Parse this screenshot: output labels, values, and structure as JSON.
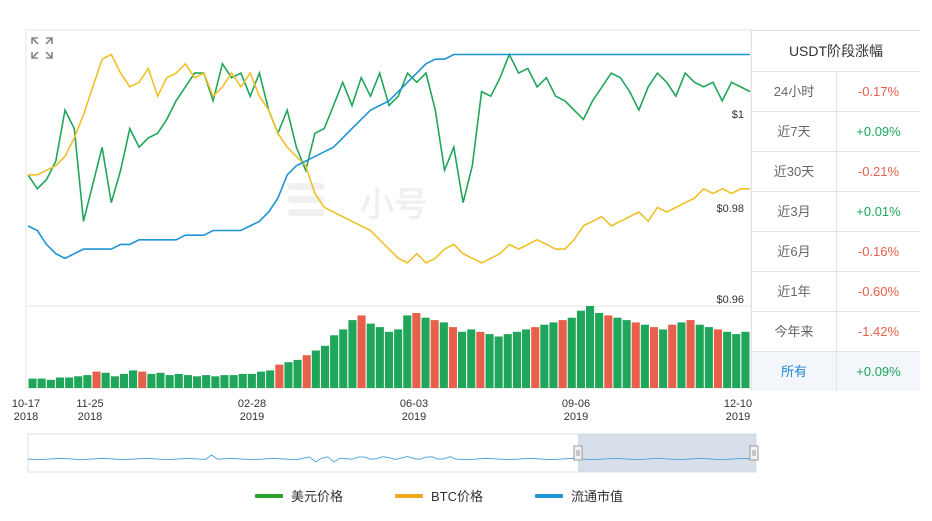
{
  "chart_data": {
    "type": "line",
    "title": "",
    "x_tick_labels": [
      {
        "date": "10-17",
        "year": "2018"
      },
      {
        "date": "11-25",
        "year": "2018"
      },
      {
        "date": "02-28",
        "year": "2019"
      },
      {
        "date": "06-03",
        "year": "2019"
      },
      {
        "date": "09-06",
        "year": "2019"
      },
      {
        "date": "12-10",
        "year": "2019"
      }
    ],
    "y_tick_labels": [
      "$1",
      "$0.98",
      "$0.96"
    ],
    "ylim": [
      0.96,
      1.0
    ],
    "x_range": [
      "2018-10-17",
      "2019-12-10"
    ],
    "series": [
      {
        "name": "美元价格",
        "color": "#1fa65a",
        "values": [
          0.982,
          0.979,
          0.981,
          0.985,
          0.996,
          0.992,
          0.972,
          0.98,
          0.988,
          0.976,
          0.983,
          0.992,
          0.988,
          0.99,
          0.991,
          0.994,
          0.998,
          1.001,
          1.004,
          1.004,
          0.998,
          1.006,
          1.003,
          1.004,
          0.999,
          1.004,
          0.996,
          0.991,
          0.996,
          0.988,
          0.983,
          0.991,
          0.992,
          0.997,
          1.002,
          0.997,
          1.003,
          0.999,
          1.004,
          0.997,
          0.999,
          1.004,
          1.002,
          1.004,
          0.996,
          0.983,
          0.988,
          0.976,
          0.984,
          1.0,
          0.999,
          1.003,
          1.008,
          1.004,
          1.005,
          1.001,
          1.003,
          0.999,
          0.998,
          0.996,
          0.994,
          0.998,
          1.001,
          1.004,
          1.003,
          1.0,
          0.996,
          1.001,
          1.004,
          1.002,
          0.999,
          1.004,
          1.002,
          1.001,
          1.002,
          0.998,
          1.002,
          1.001,
          1.0
        ],
        "note": ""
      },
      {
        "name": "BTC价格",
        "color": "#f0c02a",
        "values": [
          0.982,
          0.982,
          0.983,
          0.984,
          0.986,
          0.99,
          0.995,
          1.001,
          1.007,
          1.008,
          1.004,
          1.001,
          1.002,
          1.005,
          0.999,
          1.003,
          1.004,
          1.006,
          1.003,
          1.004,
          0.999,
          1.001,
          1.004,
          1.001,
          1.004,
          0.999,
          0.996,
          0.991,
          0.988,
          0.986,
          0.984,
          0.978,
          0.975,
          0.974,
          0.973,
          0.972,
          0.971,
          0.97,
          0.968,
          0.966,
          0.964,
          0.963,
          0.965,
          0.963,
          0.964,
          0.966,
          0.967,
          0.965,
          0.964,
          0.963,
          0.964,
          0.965,
          0.967,
          0.966,
          0.967,
          0.968,
          0.967,
          0.966,
          0.966,
          0.968,
          0.971,
          0.972,
          0.973,
          0.971,
          0.972,
          0.973,
          0.974,
          0.972,
          0.975,
          0.974,
          0.975,
          0.976,
          0.977,
          0.979,
          0.978,
          0.979,
          0.978,
          0.979,
          0.979
        ],
        "note": ""
      },
      {
        "name": "流通市值",
        "color": "#1e94d6",
        "values": [
          0.971,
          0.97,
          0.967,
          0.965,
          0.964,
          0.965,
          0.966,
          0.966,
          0.966,
          0.966,
          0.967,
          0.967,
          0.968,
          0.968,
          0.968,
          0.968,
          0.968,
          0.969,
          0.969,
          0.969,
          0.97,
          0.97,
          0.97,
          0.97,
          0.971,
          0.972,
          0.974,
          0.977,
          0.982,
          0.984,
          0.985,
          0.986,
          0.987,
          0.988,
          0.99,
          0.992,
          0.994,
          0.996,
          0.997,
          0.998,
          1.0,
          1.002,
          1.004,
          1.006,
          1.007,
          1.007,
          1.008,
          1.008,
          1.008,
          1.008,
          1.008,
          1.008,
          1.008,
          1.008,
          1.008,
          1.008,
          1.008,
          1.008,
          1.008,
          1.008,
          1.008,
          1.008,
          1.008,
          1.008,
          1.008,
          1.008,
          1.008,
          1.008,
          1.008,
          1.008,
          1.008,
          1.008,
          1.008,
          1.008,
          1.008,
          1.008,
          1.008,
          1.008,
          1.008
        ],
        "note": ""
      }
    ],
    "volume": {
      "values": [
        8,
        8,
        7,
        9,
        9,
        10,
        11,
        14,
        13,
        10,
        12,
        15,
        14,
        12,
        13,
        11,
        12,
        11,
        10,
        11,
        10,
        11,
        11,
        12,
        12,
        14,
        15,
        20,
        22,
        24,
        28,
        32,
        36,
        45,
        50,
        58,
        62,
        55,
        52,
        48,
        50,
        62,
        64,
        60,
        58,
        56,
        52,
        48,
        50,
        48,
        46,
        44,
        46,
        48,
        50,
        52,
        54,
        56,
        58,
        60,
        66,
        70,
        64,
        62,
        60,
        58,
        56,
        54,
        52,
        50,
        54,
        56,
        58,
        54,
        52,
        50,
        48,
        46,
        48
      ],
      "down_indices": [
        7,
        12,
        27,
        30,
        36,
        42,
        44,
        46,
        49,
        55,
        58,
        63,
        66,
        68,
        70,
        72,
        75
      ],
      "colors": {
        "up": "#1fa65a",
        "down": "#e8604c"
      }
    },
    "navigator": {
      "selection": [
        "2019-09-06",
        "2019-12-10"
      ]
    },
    "legend_position": "bottom-center",
    "grid": false
  },
  "side_table": {
    "title": "USDT阶段涨幅",
    "rows": [
      {
        "label": "24小时",
        "value": "-0.17%",
        "dir": "neg"
      },
      {
        "label": "近7天",
        "value": "+0.09%",
        "dir": "pos"
      },
      {
        "label": "近30天",
        "value": "-0.21%",
        "dir": "neg"
      },
      {
        "label": "近3月",
        "value": "+0.01%",
        "dir": "pos"
      },
      {
        "label": "近6月",
        "value": "-0.16%",
        "dir": "neg"
      },
      {
        "label": "近1年",
        "value": "-0.60%",
        "dir": "neg"
      },
      {
        "label": "今年来",
        "value": "-1.42%",
        "dir": "neg"
      },
      {
        "label": "所有",
        "value": "+0.09%",
        "dir": "pos",
        "active": true
      }
    ]
  },
  "legend": [
    {
      "label": "美元价格",
      "color": "#2ca02c"
    },
    {
      "label": "BTC价格",
      "color": "#f0a81e"
    },
    {
      "label": "流通市值",
      "color": "#1e94d6"
    }
  ],
  "watermark_text": "小号",
  "icons": {
    "zoom": "expand-icon"
  }
}
